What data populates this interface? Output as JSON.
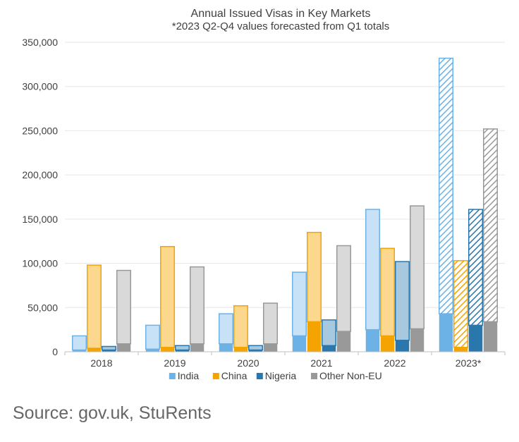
{
  "chart_data": {
    "type": "bar",
    "title": "Annual Issued Visas in Key Markets",
    "subtitle": "*2023 Q2-Q4 values forecasted from Q1 totals",
    "categories": [
      "2018",
      "2019",
      "2020",
      "2021",
      "2022",
      "2023*"
    ],
    "ylim": [
      0,
      350000
    ],
    "yticks": [
      "0",
      "50,000",
      "100,000",
      "150,000",
      "200,000",
      "250,000",
      "300,000",
      "350,000"
    ],
    "grid": true,
    "legend_position": "bottom",
    "stacked_within_series": true,
    "hatched_categories": [
      "2023*"
    ],
    "series": [
      {
        "name": "India",
        "color": "#6cb2e6",
        "light_color": "#c7e2f6",
        "dark_values": [
          2000,
          3000,
          9000,
          18000,
          25000,
          43000
        ],
        "totals": [
          18000,
          30000,
          43000,
          90000,
          161000,
          332000
        ]
      },
      {
        "name": "China",
        "color": "#f5a300",
        "light_color": "#fcd88f",
        "dark_values": [
          4000,
          5000,
          5000,
          34000,
          18000,
          5000
        ],
        "totals": [
          98000,
          119000,
          52000,
          135000,
          117000,
          103000
        ]
      },
      {
        "name": "Nigeria",
        "color": "#2a77ae",
        "light_color": "#a7c9df",
        "dark_values": [
          2000,
          2000,
          2000,
          7000,
          13000,
          30000
        ],
        "totals": [
          6000,
          7000,
          7000,
          36000,
          102000,
          161000
        ]
      },
      {
        "name": "Other Non-EU",
        "color": "#999999",
        "light_color": "#d9d9d9",
        "dark_values": [
          9000,
          9000,
          9000,
          23000,
          26000,
          34000
        ],
        "totals": [
          92000,
          96000,
          55000,
          120000,
          165000,
          252000
        ]
      }
    ]
  },
  "source": "Source: gov.uk, StuRents"
}
